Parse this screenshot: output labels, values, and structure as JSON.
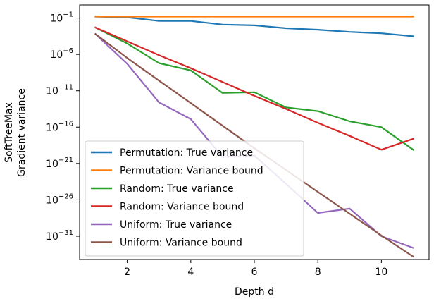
{
  "chart_data": {
    "type": "line",
    "title": "",
    "xlabel": "Depth d",
    "ylabel_line1": "SoftTreeMax",
    "ylabel_line2": "Gradient variance",
    "yscale": "log",
    "xlim": [
      0.5,
      11.5
    ],
    "ylim_exp": [
      -34.2,
      0.8
    ],
    "x_ticks": [
      2,
      4,
      6,
      8,
      10
    ],
    "y_ticks": [
      {
        "exp": -1,
        "base": "10",
        "sup": "−1"
      },
      {
        "exp": -6,
        "base": "10",
        "sup": "−6"
      },
      {
        "exp": -11,
        "base": "10",
        "sup": "−11"
      },
      {
        "exp": -16,
        "base": "10",
        "sup": "−16"
      },
      {
        "exp": -21,
        "base": "10",
        "sup": "−21"
      },
      {
        "exp": -26,
        "base": "10",
        "sup": "−26"
      },
      {
        "exp": -31,
        "base": "10",
        "sup": "−31"
      }
    ],
    "grid": false,
    "legend_position": "lower-left",
    "x": [
      1,
      2,
      3,
      4,
      5,
      6,
      7,
      8,
      9,
      10,
      11
    ],
    "series": [
      {
        "name": "Permutation: True variance",
        "color": "#1f77b4",
        "log10_values": [
          -0.8,
          -0.9,
          -1.4,
          -1.4,
          -1.9,
          -2.0,
          -2.4,
          -2.6,
          -2.9,
          -3.1,
          -3.5
        ]
      },
      {
        "name": "Permutation: Variance bound",
        "color": "#ff7f0e",
        "log10_values": [
          -0.8,
          -0.8,
          -0.8,
          -0.8,
          -0.8,
          -0.8,
          -0.8,
          -0.8,
          -0.8,
          -0.8,
          -0.8
        ]
      },
      {
        "name": "Random: True variance",
        "color": "#2ca02c",
        "log10_values": [
          -2.3,
          -4.5,
          -7.2,
          -8.2,
          -11.3,
          -11.2,
          -13.3,
          -13.8,
          -15.2,
          -16.0,
          -19.1
        ]
      },
      {
        "name": "Random: Variance bound",
        "color": "#d62728",
        "log10_values": [
          -2.3,
          -4.2,
          -6.1,
          -7.9,
          -9.8,
          -11.7,
          -13.5,
          -15.4,
          -17.2,
          -19.1,
          -17.6
        ]
      },
      {
        "name": "Uniform: True variance",
        "color": "#9467bd",
        "log10_values": [
          -3.2,
          -7.3,
          -12.6,
          -14.9,
          -20.1,
          -19.9,
          -23.8,
          -27.8,
          -27.2,
          -31.0,
          -32.6
        ]
      },
      {
        "name": "Uniform: Variance bound",
        "color": "#8c564b",
        "log10_values": [
          -3.2,
          -6.5,
          -9.6,
          -12.7,
          -15.8,
          -18.9,
          -21.9,
          -24.9,
          -27.9,
          -30.9,
          -33.8
        ]
      }
    ]
  }
}
